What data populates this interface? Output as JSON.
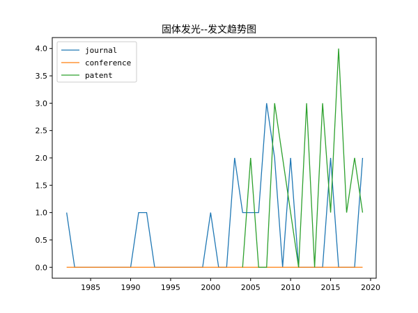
{
  "chart_data": {
    "type": "line",
    "title": "固体发光--发文趋势图",
    "xlabel": "",
    "ylabel": "",
    "xlim": [
      1980.2,
      2020.7
    ],
    "ylim": [
      -0.2,
      4.2
    ],
    "xticks": [
      1985,
      1990,
      1995,
      2000,
      2005,
      2010,
      2015,
      2020
    ],
    "yticks": [
      0.0,
      0.5,
      1.0,
      1.5,
      2.0,
      2.5,
      3.0,
      3.5,
      4.0
    ],
    "ytick_labels": [
      "0.0",
      "0.5",
      "1.0",
      "1.5",
      "2.0",
      "2.5",
      "3.0",
      "3.5",
      "4.0"
    ],
    "grid": false,
    "legend_position": "upper-left",
    "x": [
      1982,
      1983,
      1984,
      1985,
      1986,
      1987,
      1988,
      1989,
      1990,
      1991,
      1992,
      1993,
      1994,
      1995,
      1996,
      1997,
      1998,
      1999,
      2000,
      2001,
      2002,
      2003,
      2004,
      2005,
      2006,
      2007,
      2008,
      2009,
      2010,
      2011,
      2012,
      2013,
      2014,
      2015,
      2016,
      2017,
      2018,
      2019
    ],
    "series": [
      {
        "name": "journal",
        "color": "#1f77b4",
        "x": [
          1982,
          1983,
          1984,
          1985,
          1986,
          1987,
          1988,
          1989,
          1990,
          1991,
          1992,
          1993,
          1994,
          1995,
          1996,
          1997,
          1998,
          1999,
          2000,
          2001,
          2002,
          2003,
          2004,
          2005,
          2006,
          2007,
          2008,
          2009,
          2010,
          2011,
          2012,
          2013,
          2014,
          2015,
          2016,
          2017,
          2018,
          2019
        ],
        "values": [
          1,
          0,
          0,
          0,
          0,
          0,
          0,
          0,
          0,
          1,
          1,
          0,
          0,
          0,
          0,
          0,
          0,
          0,
          1,
          0,
          0,
          2,
          1,
          1,
          1,
          3,
          2,
          0,
          2,
          0,
          0,
          0,
          0,
          2,
          0,
          0,
          0,
          2
        ]
      },
      {
        "name": "conference",
        "color": "#ff7f0e",
        "x": [
          1982,
          1983,
          1984,
          1985,
          1986,
          1987,
          1988,
          1989,
          1990,
          1991,
          1992,
          1993,
          1994,
          1995,
          1996,
          1997,
          1998,
          1999,
          2000,
          2001,
          2002,
          2003,
          2004,
          2005,
          2006,
          2007,
          2008,
          2009,
          2010,
          2011,
          2012,
          2013,
          2014,
          2015,
          2016,
          2017,
          2018,
          2019
        ],
        "values": [
          0,
          0,
          0,
          0,
          0,
          0,
          0,
          0,
          0,
          0,
          0,
          0,
          0,
          0,
          0,
          0,
          0,
          0,
          0,
          0,
          0,
          0,
          0,
          0,
          0,
          0,
          0,
          0,
          0,
          0,
          0,
          0,
          0,
          0,
          0,
          0,
          0,
          0
        ]
      },
      {
        "name": "patent",
        "color": "#2ca02c",
        "x": [
          2004,
          2005,
          2006,
          2007,
          2008,
          2009,
          2010,
          2011,
          2012,
          2013,
          2014,
          2015,
          2016,
          2017,
          2018,
          2019
        ],
        "values": [
          0,
          2,
          0,
          0,
          3,
          2,
          1,
          0,
          3,
          0,
          3,
          1,
          4,
          1,
          2,
          1
        ]
      }
    ]
  }
}
